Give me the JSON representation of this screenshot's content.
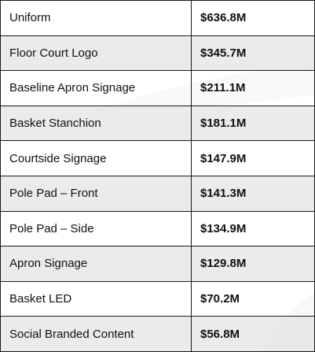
{
  "table": {
    "rows": [
      {
        "asset": "Uniform",
        "value": "$636.8M"
      },
      {
        "asset": "Floor Court Logo",
        "value": "$345.7M"
      },
      {
        "asset": "Baseline Apron Signage",
        "value": "$211.1M"
      },
      {
        "asset": "Basket Stanchion",
        "value": "$181.1M"
      },
      {
        "asset": "Courtside Signage",
        "value": "$147.9M"
      },
      {
        "asset": "Pole Pad – Front",
        "value": "$141.3M"
      },
      {
        "asset": "Pole Pad – Side",
        "value": "$134.9M"
      },
      {
        "asset": "Apron Signage",
        "value": "$129.8M"
      },
      {
        "asset": "Basket LED",
        "value": "$70.2M"
      },
      {
        "asset": "Social Branded Content",
        "value": "$56.8M"
      }
    ]
  },
  "colors": {
    "border": "#1a1a1a",
    "row_shade": "#e8e8e8",
    "text": "#111111"
  }
}
